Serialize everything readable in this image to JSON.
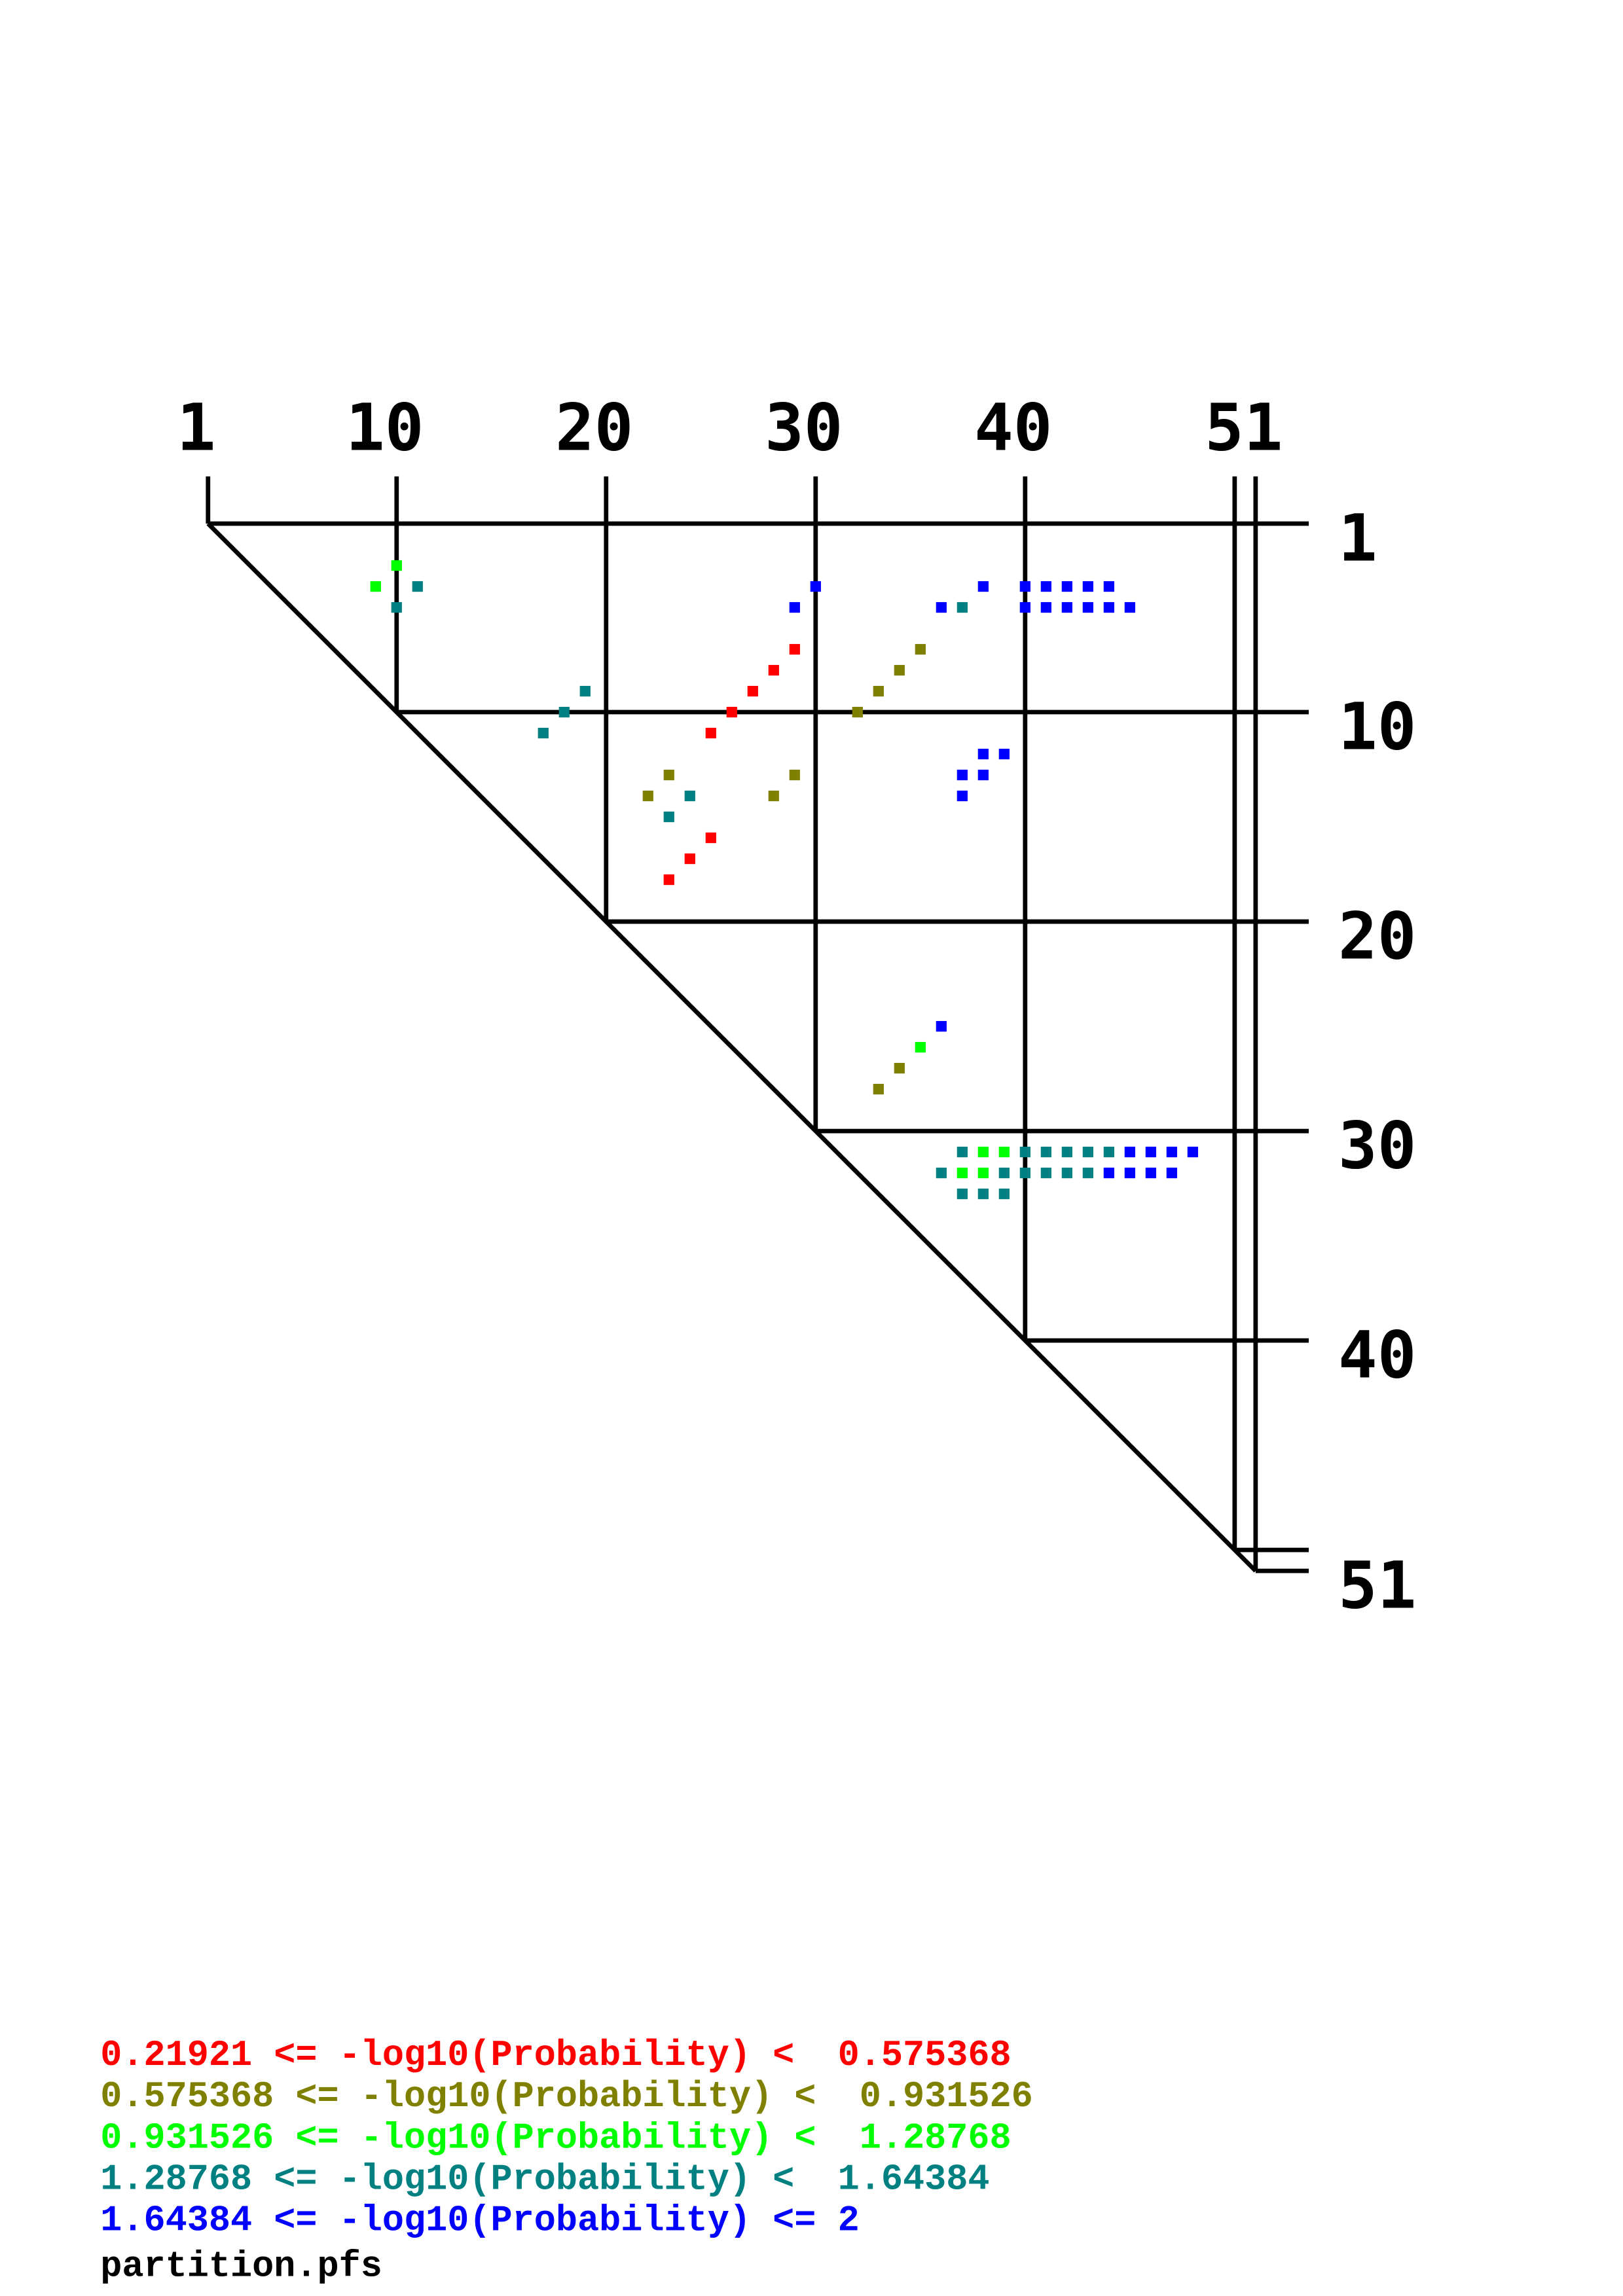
{
  "chart_data": {
    "type": "scatter",
    "subtype": "dot-plot (upper triangle)",
    "sequence_length": 51,
    "x_tick_labels": [
      "1",
      "10",
      "20",
      "30",
      "40",
      "51"
    ],
    "y_tick_labels": [
      "1",
      "10",
      "20",
      "30",
      "40",
      "51"
    ],
    "ticks": [
      1,
      10,
      20,
      30,
      40,
      50,
      51
    ],
    "legend_placement": "bottom-left",
    "bins": [
      {
        "label": "0.21921 <= -log10(Probability) <  0.575368",
        "color": "#ff0000"
      },
      {
        "label": "0.575368 <= -log10(Probability) <  0.931526",
        "color": "#808000"
      },
      {
        "label": "0.931526 <= -log10(Probability) <  1.28768",
        "color": "#00ff00"
      },
      {
        "label": "1.28768 <= -log10(Probability) <  1.64384",
        "color": "#008080"
      },
      {
        "label": "1.64384 <= -log10(Probability) <= 2",
        "color": "#0000ff"
      }
    ],
    "filename": "partition.pfs",
    "points_format": [
      "i",
      "j",
      "bin"
    ],
    "points": [
      [
        3,
        10,
        2
      ],
      [
        4,
        9,
        2
      ],
      [
        4,
        11,
        3
      ],
      [
        5,
        10,
        3
      ],
      [
        9,
        19,
        3
      ],
      [
        10,
        18,
        3
      ],
      [
        11,
        17,
        3
      ],
      [
        4,
        30,
        4
      ],
      [
        5,
        29,
        4
      ],
      [
        4,
        38,
        4
      ],
      [
        5,
        36,
        4
      ],
      [
        5,
        37,
        3
      ],
      [
        4,
        40,
        4
      ],
      [
        4,
        41,
        4
      ],
      [
        4,
        42,
        4
      ],
      [
        4,
        43,
        4
      ],
      [
        4,
        44,
        4
      ],
      [
        5,
        40,
        4
      ],
      [
        5,
        41,
        4
      ],
      [
        5,
        42,
        4
      ],
      [
        5,
        43,
        4
      ],
      [
        5,
        44,
        4
      ],
      [
        5,
        45,
        4
      ],
      [
        7,
        29,
        0
      ],
      [
        8,
        28,
        0
      ],
      [
        9,
        27,
        0
      ],
      [
        10,
        26,
        0
      ],
      [
        11,
        25,
        0
      ],
      [
        7,
        35,
        1
      ],
      [
        8,
        34,
        1
      ],
      [
        9,
        33,
        1
      ],
      [
        10,
        32,
        1
      ],
      [
        12,
        38,
        4
      ],
      [
        12,
        39,
        4
      ],
      [
        13,
        37,
        4
      ],
      [
        13,
        38,
        4
      ],
      [
        14,
        37,
        4
      ],
      [
        13,
        23,
        1
      ],
      [
        14,
        22,
        1
      ],
      [
        14,
        24,
        3
      ],
      [
        15,
        23,
        3
      ],
      [
        13,
        29,
        1
      ],
      [
        14,
        28,
        1
      ],
      [
        16,
        25,
        0
      ],
      [
        17,
        24,
        0
      ],
      [
        18,
        23,
        0
      ],
      [
        25,
        36,
        4
      ],
      [
        26,
        35,
        2
      ],
      [
        27,
        34,
        1
      ],
      [
        28,
        33,
        1
      ],
      [
        31,
        37,
        3
      ],
      [
        31,
        38,
        2
      ],
      [
        31,
        39,
        2
      ],
      [
        31,
        40,
        3
      ],
      [
        31,
        41,
        3
      ],
      [
        31,
        42,
        3
      ],
      [
        31,
        43,
        3
      ],
      [
        31,
        44,
        3
      ],
      [
        31,
        45,
        4
      ],
      [
        31,
        46,
        4
      ],
      [
        31,
        47,
        4
      ],
      [
        31,
        48,
        4
      ],
      [
        32,
        36,
        3
      ],
      [
        32,
        37,
        2
      ],
      [
        32,
        38,
        2
      ],
      [
        32,
        39,
        3
      ],
      [
        32,
        40,
        3
      ],
      [
        32,
        41,
        3
      ],
      [
        32,
        42,
        3
      ],
      [
        32,
        43,
        3
      ],
      [
        32,
        44,
        4
      ],
      [
        32,
        45,
        4
      ],
      [
        32,
        46,
        4
      ],
      [
        32,
        47,
        4
      ],
      [
        33,
        37,
        3
      ],
      [
        33,
        38,
        3
      ],
      [
        33,
        39,
        3
      ]
    ]
  }
}
